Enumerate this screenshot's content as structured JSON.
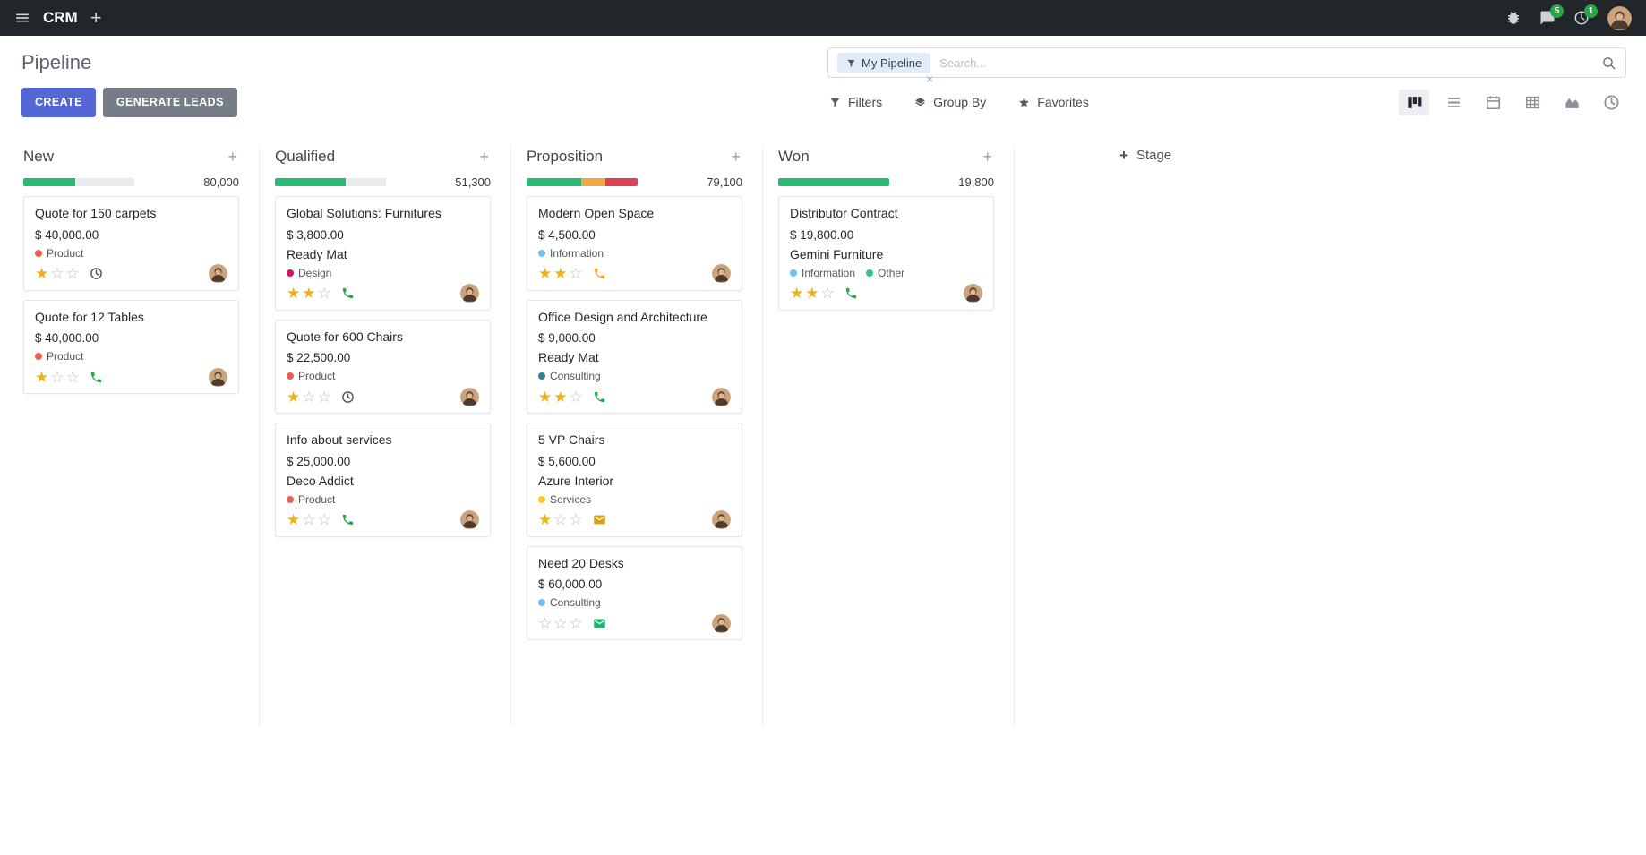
{
  "topbar": {
    "app_name": "CRM",
    "messages_badge": "5",
    "activities_badge": "1"
  },
  "control_panel": {
    "title": "Pipeline",
    "search": {
      "facet_label": "My Pipeline",
      "remove_facet": "×",
      "placeholder": "Search..."
    },
    "create_label": "CREATE",
    "generate_leads_label": "GENERATE LEADS",
    "filters_label": "Filters",
    "group_by_label": "Group By",
    "favorites_label": "Favorites",
    "view_switcher": {
      "active": "kanban",
      "views": [
        "kanban",
        "list",
        "calendar",
        "pivot",
        "graph",
        "activity"
      ]
    }
  },
  "colors": {
    "create_button": "#5566d6",
    "generate_button": "#767d89",
    "progress_green": "#29b973",
    "progress_yellow": "#efa840",
    "progress_red": "#dc4053",
    "star_filled": "#eeb117",
    "badge_green": "#28a745"
  },
  "board": {
    "add_stage_label": "Stage",
    "columns": [
      {
        "name": "New",
        "total": "80,000",
        "progress": [
          {
            "color": "#29b973",
            "pct": 47
          }
        ],
        "cards": [
          {
            "title": "Quote for 150 carpets",
            "amount": "$ 40,000.00",
            "partner": null,
            "tags": [
              {
                "label": "Product",
                "color": "#f06050"
              }
            ],
            "stars": 1,
            "activity": {
              "type": "clock",
              "color": "#495057"
            }
          },
          {
            "title": "Quote for 12 Tables",
            "amount": "$ 40,000.00",
            "partner": null,
            "tags": [
              {
                "label": "Product",
                "color": "#f06050"
              }
            ],
            "stars": 1,
            "activity": {
              "type": "phone",
              "color": "#28a745"
            }
          }
        ]
      },
      {
        "name": "Qualified",
        "total": "51,300",
        "progress": [
          {
            "color": "#29b973",
            "pct": 64
          }
        ],
        "cards": [
          {
            "title": "Global Solutions: Furnitures",
            "amount": "$ 3,800.00",
            "partner": "Ready Mat",
            "tags": [
              {
                "label": "Design",
                "color": "#d6145f"
              }
            ],
            "stars": 2,
            "activity": {
              "type": "phone",
              "color": "#28a745"
            }
          },
          {
            "title": "Quote for 600 Chairs",
            "amount": "$ 22,500.00",
            "partner": null,
            "tags": [
              {
                "label": "Product",
                "color": "#f06050"
              }
            ],
            "stars": 1,
            "activity": {
              "type": "clock",
              "color": "#495057"
            }
          },
          {
            "title": "Info about services",
            "amount": "$ 25,000.00",
            "partner": "Deco Addict",
            "tags": [
              {
                "label": "Product",
                "color": "#f06050"
              }
            ],
            "stars": 1,
            "activity": {
              "type": "phone",
              "color": "#28a745"
            }
          }
        ]
      },
      {
        "name": "Proposition",
        "total": "79,100",
        "progress": [
          {
            "color": "#29b973",
            "pct": 49
          },
          {
            "color": "#efa840",
            "pct": 22
          },
          {
            "color": "#dc4053",
            "pct": 29
          }
        ],
        "cards": [
          {
            "title": "Modern Open Space",
            "amount": "$ 4,500.00",
            "partner": null,
            "tags": [
              {
                "label": "Information",
                "color": "#6cc1ed"
              }
            ],
            "stars": 2,
            "activity": {
              "type": "phone",
              "color": "#efa63c"
            }
          },
          {
            "title": "Office Design and Architecture",
            "amount": "$ 9,000.00",
            "partner": "Ready Mat",
            "tags": [
              {
                "label": "Consulting",
                "color": "#2c8397"
              }
            ],
            "stars": 2,
            "activity": {
              "type": "phone",
              "color": "#28a745"
            }
          },
          {
            "title": "5 VP Chairs",
            "amount": "$ 5,600.00",
            "partner": "Azure Interior",
            "tags": [
              {
                "label": "Services",
                "color": "#f7cd1f"
              }
            ],
            "stars": 1,
            "activity": {
              "type": "envelope",
              "color": "#d9a118"
            }
          },
          {
            "title": "Need 20 Desks",
            "amount": "$ 60,000.00",
            "partner": null,
            "tags": [
              {
                "label": "Consulting",
                "color": "#6cc1ed"
              }
            ],
            "stars": 0,
            "activity": {
              "type": "envelope",
              "color": "#21b573"
            }
          }
        ]
      },
      {
        "name": "Won",
        "total": "19,800",
        "progress": [
          {
            "color": "#29b973",
            "pct": 100
          }
        ],
        "cards": [
          {
            "title": "Distributor Contract",
            "amount": "$ 19,800.00",
            "partner": "Gemini Furniture",
            "tags": [
              {
                "label": "Information",
                "color": "#6cc1ed"
              },
              {
                "label": "Other",
                "color": "#30c381"
              }
            ],
            "stars": 2,
            "activity": {
              "type": "phone",
              "color": "#28a745"
            }
          }
        ]
      }
    ]
  }
}
